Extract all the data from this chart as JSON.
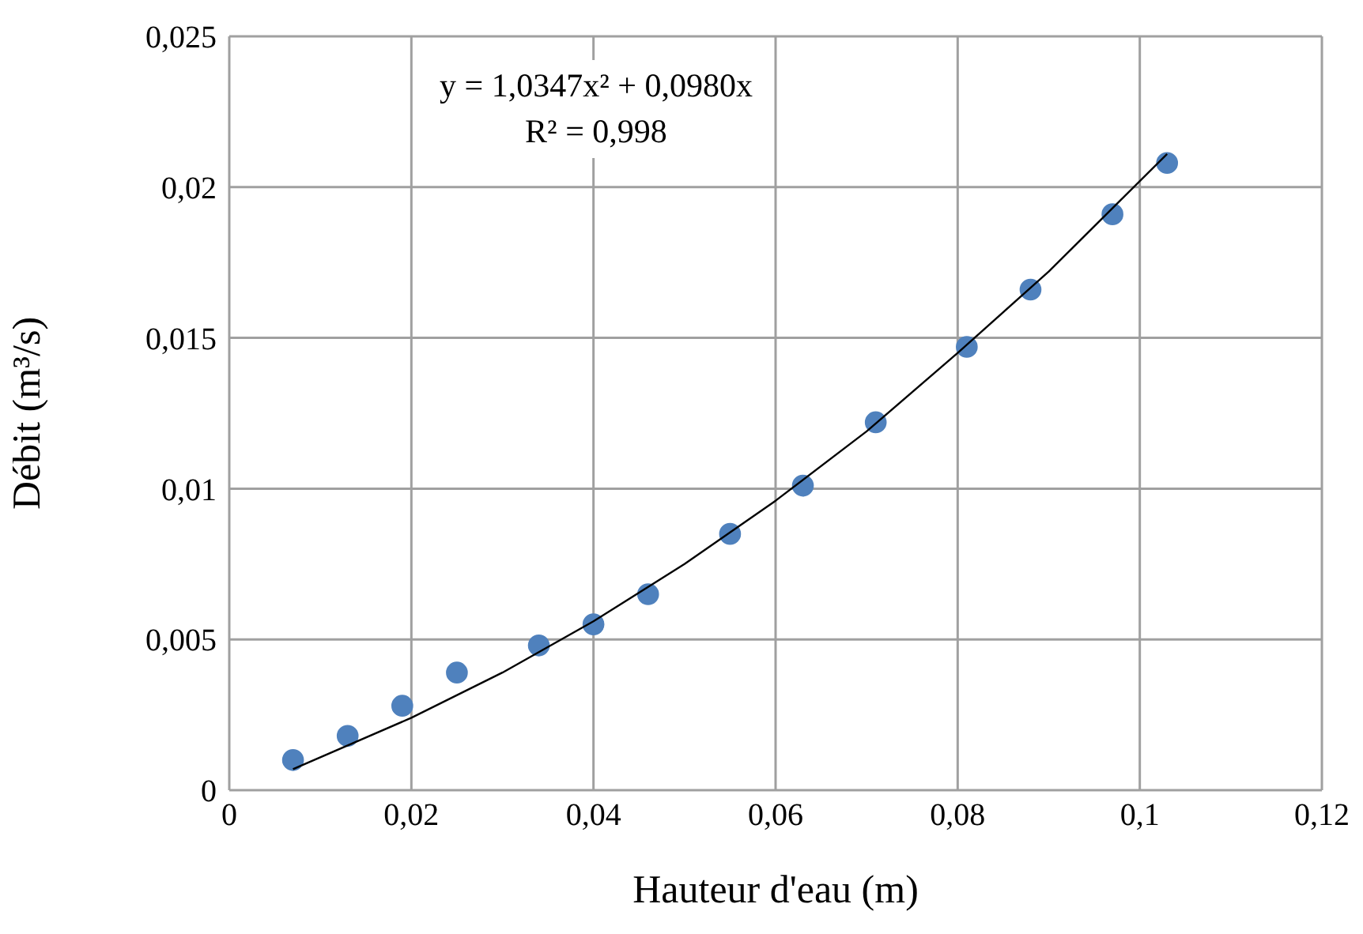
{
  "chart_data": {
    "type": "scatter",
    "xlabel": "Hauteur d'eau (m)",
    "ylabel": "Débit (m³/s)",
    "grid": true,
    "x": [
      0.007,
      0.013,
      0.019,
      0.025,
      0.034,
      0.04,
      0.046,
      0.055,
      0.063,
      0.071,
      0.081,
      0.088,
      0.097,
      0.103
    ],
    "series": [
      {
        "marker": "circle",
        "color": "#4f81bd",
        "values": [
          0.001,
          0.0018,
          0.0028,
          0.0039,
          0.0048,
          0.0055,
          0.0065,
          0.0085,
          0.0101,
          0.0122,
          0.0147,
          0.0166,
          0.0191,
          0.0208
        ]
      },
      {
        "type": "line",
        "color": "#000000",
        "x": [
          0.007,
          0.02,
          0.03,
          0.04,
          0.05,
          0.06,
          0.07,
          0.08,
          0.09,
          0.103
        ],
        "values": [
          0.0007,
          0.0024,
          0.0039,
          0.0056,
          0.0075,
          0.0096,
          0.0119,
          0.0145,
          0.0172,
          0.0211
        ]
      }
    ],
    "annotations": [
      "y = 1,0347x² + 0,0980x",
      "R² = 0,998"
    ],
    "xlim": [
      0,
      0.12
    ],
    "xticks": [
      0,
      {
        "value": 0.02,
        "label": "0,02"
      },
      {
        "value": 0.04,
        "label": "0,04"
      },
      {
        "value": 0.06,
        "label": "0,06"
      },
      {
        "value": 0.08,
        "label": "0,08"
      },
      {
        "value": 0.1,
        "label": "0,1"
      },
      {
        "value": 0.12,
        "label": "0,12"
      }
    ],
    "ylim": [
      0,
      0.025
    ],
    "yticks": [
      0,
      {
        "value": 0.005,
        "label": "0,005"
      },
      {
        "value": 0.01,
        "label": "0,01"
      },
      {
        "value": 0.015,
        "label": "0,015"
      },
      {
        "value": 0.02,
        "label": "0,02"
      },
      {
        "value": 0.025,
        "label": "0,025"
      }
    ]
  }
}
